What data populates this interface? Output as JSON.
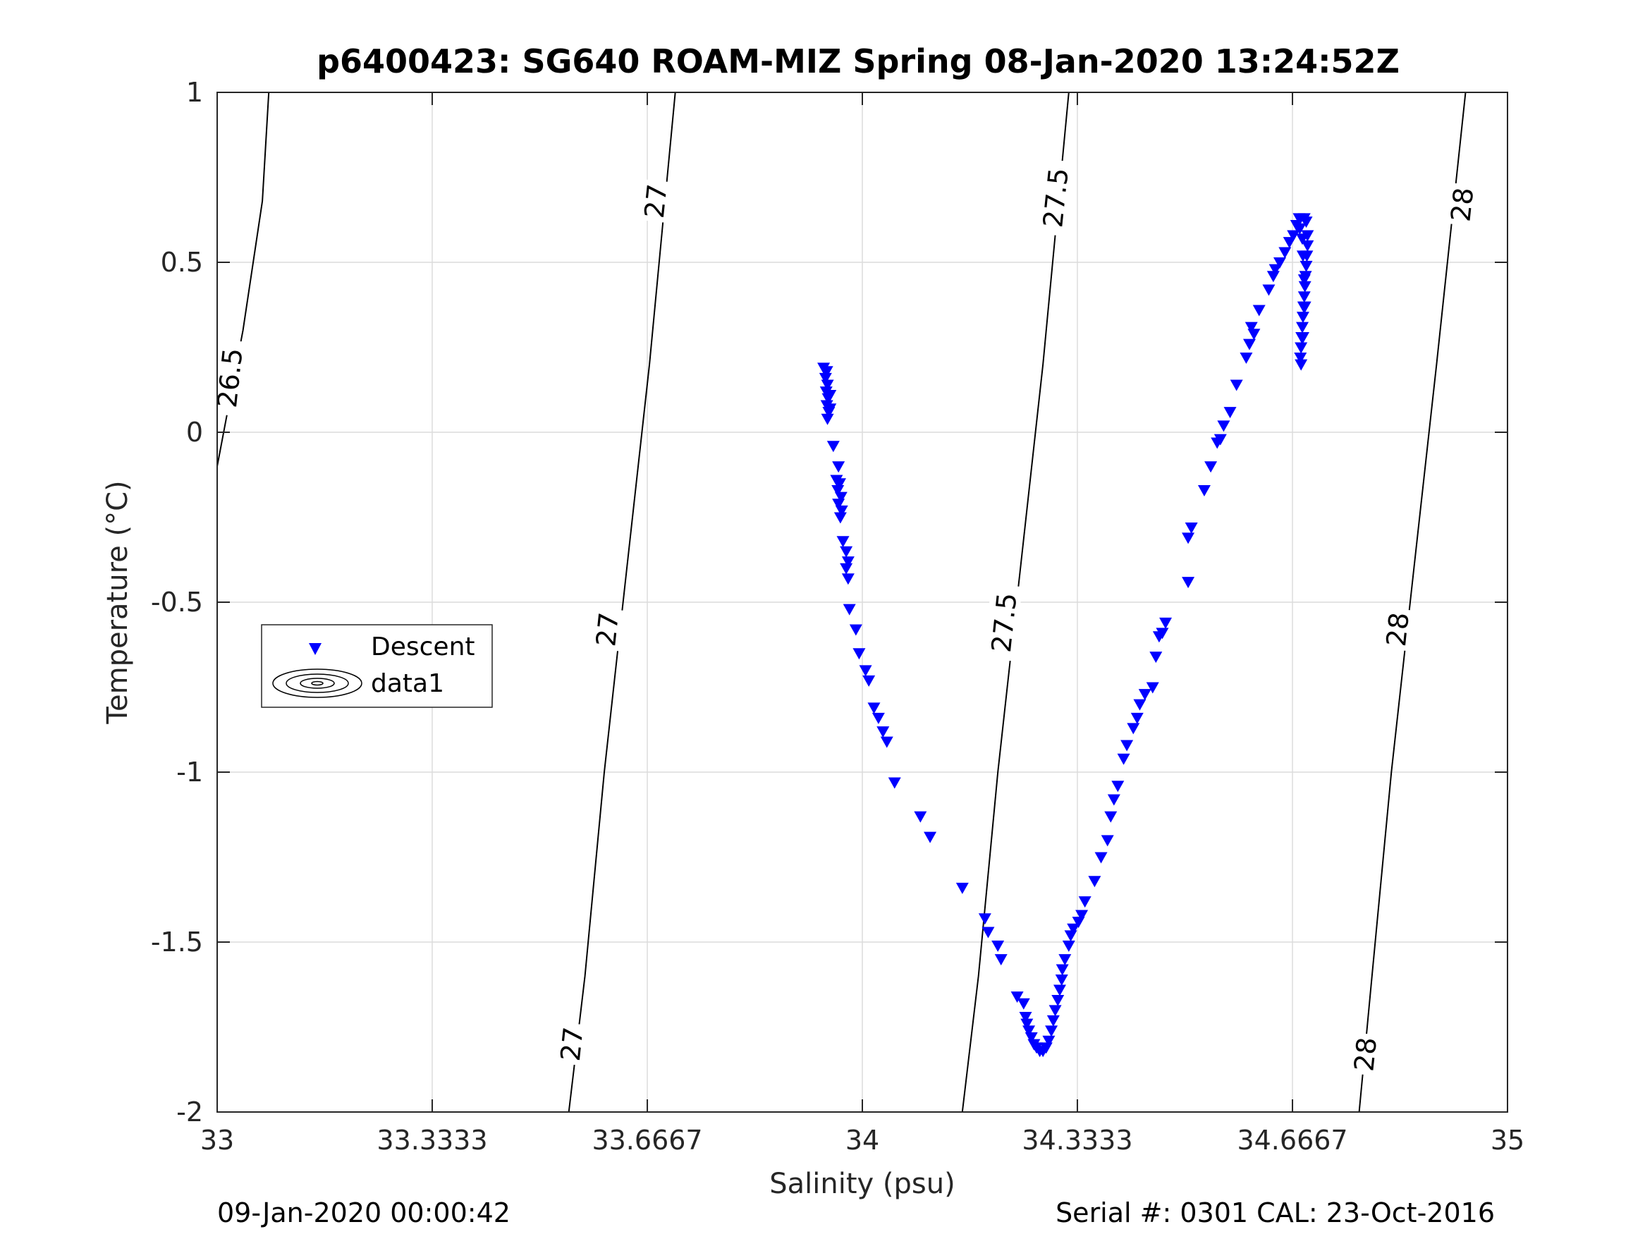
{
  "chart_data": {
    "type": "scatter",
    "title": "p6400423: SG640 ROAM-MIZ Spring 08-Jan-2020 13:24:52Z",
    "xlabel": "Salinity (psu)",
    "ylabel": "Temperature (°C)",
    "xlim": [
      33,
      35
    ],
    "ylim": [
      -2,
      1
    ],
    "x_ticks": [
      33,
      33.3333,
      33.6667,
      34,
      34.3333,
      34.6667,
      35
    ],
    "x_tick_labels": [
      "33",
      "33.3333",
      "33.6667",
      "34",
      "34.3333",
      "34.6667",
      "35"
    ],
    "y_ticks": [
      -2,
      -1.5,
      -1,
      -0.5,
      0,
      0.5,
      1
    ],
    "y_tick_labels": [
      "-2",
      "-1.5",
      "-1",
      "-0.5",
      "0",
      "0.5",
      "1"
    ],
    "grid": true,
    "legend": {
      "placement": "left-center",
      "entries": [
        {
          "label": "Descent",
          "marker": "triangle-down",
          "color": "#0000ff"
        },
        {
          "label": "data1",
          "marker": "contour",
          "color": "#000000"
        }
      ]
    },
    "contours": [
      {
        "level": "26.5",
        "points": [
          [
            32.99,
            -0.2
          ],
          [
            33.04,
            0.3
          ],
          [
            33.07,
            0.68
          ],
          [
            33.08,
            1.0
          ]
        ]
      },
      {
        "level": "27",
        "points": [
          [
            33.545,
            -2.0
          ],
          [
            33.57,
            -1.6
          ],
          [
            33.6,
            -1.0
          ],
          [
            33.635,
            -0.4
          ],
          [
            33.67,
            0.2
          ],
          [
            33.71,
            1.0
          ]
        ]
      },
      {
        "level": "27.5",
        "points": [
          [
            34.155,
            -2.0
          ],
          [
            34.18,
            -1.6
          ],
          [
            34.21,
            -1.0
          ],
          [
            34.245,
            -0.4
          ],
          [
            34.28,
            0.2
          ],
          [
            34.32,
            1.0
          ]
        ]
      },
      {
        "level": "28",
        "points": [
          [
            34.77,
            -2.0
          ],
          [
            34.79,
            -1.6
          ],
          [
            34.82,
            -1.0
          ],
          [
            34.855,
            -0.4
          ],
          [
            34.89,
            0.2
          ],
          [
            34.935,
            1.0
          ]
        ]
      }
    ],
    "contour_labels": [
      {
        "text": "26.5",
        "x": 33.02,
        "y": 0.16
      },
      {
        "text": "27",
        "x": 33.68,
        "y": 0.68
      },
      {
        "text": "27",
        "x": 33.605,
        "y": -0.58
      },
      {
        "text": "27",
        "x": 33.55,
        "y": -1.8
      },
      {
        "text": "27.5",
        "x": 34.3,
        "y": 0.69
      },
      {
        "text": "27.5",
        "x": 34.22,
        "y": -0.56
      },
      {
        "text": "28",
        "x": 34.93,
        "y": 0.67
      },
      {
        "text": "28",
        "x": 34.83,
        "y": -0.58
      },
      {
        "text": "28",
        "x": 34.78,
        "y": -1.83
      }
    ],
    "series": [
      {
        "name": "Descent",
        "color": "#0000ff",
        "marker": "triangle-down",
        "points": [
          [
            33.94,
            0.19
          ],
          [
            33.945,
            0.18
          ],
          [
            33.943,
            0.16
          ],
          [
            33.946,
            0.14
          ],
          [
            33.944,
            0.12
          ],
          [
            33.947,
            0.1
          ],
          [
            33.945,
            0.08
          ],
          [
            33.948,
            0.06
          ],
          [
            33.946,
            0.04
          ],
          [
            33.95,
            0.07
          ],
          [
            33.95,
            0.11
          ],
          [
            33.955,
            -0.04
          ],
          [
            33.963,
            -0.1
          ],
          [
            33.96,
            -0.14
          ],
          [
            33.965,
            -0.15
          ],
          [
            33.962,
            -0.17
          ],
          [
            33.967,
            -0.19
          ],
          [
            33.963,
            -0.21
          ],
          [
            33.968,
            -0.23
          ],
          [
            33.966,
            -0.25
          ],
          [
            33.97,
            -0.32
          ],
          [
            33.975,
            -0.35
          ],
          [
            33.978,
            -0.38
          ],
          [
            33.975,
            -0.4
          ],
          [
            33.978,
            -0.43
          ],
          [
            33.98,
            -0.52
          ],
          [
            33.99,
            -0.58
          ],
          [
            33.995,
            -0.65
          ],
          [
            34.005,
            -0.7
          ],
          [
            34.01,
            -0.73
          ],
          [
            34.018,
            -0.81
          ],
          [
            34.025,
            -0.84
          ],
          [
            34.032,
            -0.88
          ],
          [
            34.038,
            -0.91
          ],
          [
            34.05,
            -1.03
          ],
          [
            34.09,
            -1.13
          ],
          [
            34.105,
            -1.19
          ],
          [
            34.155,
            -1.34
          ],
          [
            34.19,
            -1.43
          ],
          [
            34.195,
            -1.47
          ],
          [
            34.21,
            -1.51
          ],
          [
            34.215,
            -1.55
          ],
          [
            34.24,
            -1.66
          ],
          [
            34.25,
            -1.68
          ],
          [
            34.253,
            -1.72
          ],
          [
            34.255,
            -1.74
          ],
          [
            34.258,
            -1.76
          ],
          [
            34.262,
            -1.78
          ],
          [
            34.266,
            -1.8
          ],
          [
            34.27,
            -1.81
          ],
          [
            34.275,
            -1.82
          ],
          [
            34.28,
            -1.82
          ],
          [
            34.285,
            -1.81
          ],
          [
            34.289,
            -1.79
          ],
          [
            34.293,
            -1.76
          ],
          [
            34.296,
            -1.73
          ],
          [
            34.299,
            -1.7
          ],
          [
            34.303,
            -1.67
          ],
          [
            34.306,
            -1.64
          ],
          [
            34.309,
            -1.61
          ],
          [
            34.31,
            -1.58
          ],
          [
            34.314,
            -1.55
          ],
          [
            34.32,
            -1.51
          ],
          [
            34.323,
            -1.48
          ],
          [
            34.327,
            -1.46
          ],
          [
            34.335,
            -1.44
          ],
          [
            34.34,
            -1.42
          ],
          [
            34.345,
            -1.38
          ],
          [
            34.36,
            -1.32
          ],
          [
            34.37,
            -1.25
          ],
          [
            34.38,
            -1.2
          ],
          [
            34.385,
            -1.13
          ],
          [
            34.39,
            -1.08
          ],
          [
            34.396,
            -1.04
          ],
          [
            34.405,
            -0.96
          ],
          [
            34.41,
            -0.92
          ],
          [
            34.42,
            -0.87
          ],
          [
            34.426,
            -0.84
          ],
          [
            34.43,
            -0.8
          ],
          [
            34.438,
            -0.77
          ],
          [
            34.45,
            -0.75
          ],
          [
            34.455,
            -0.66
          ],
          [
            34.46,
            -0.6
          ],
          [
            34.465,
            -0.59
          ],
          [
            34.47,
            -0.56
          ],
          [
            34.505,
            -0.44
          ],
          [
            34.505,
            -0.31
          ],
          [
            34.51,
            -0.28
          ],
          [
            34.53,
            -0.17
          ],
          [
            34.54,
            -0.1
          ],
          [
            34.55,
            -0.03
          ],
          [
            34.555,
            -0.02
          ],
          [
            34.56,
            0.02
          ],
          [
            34.57,
            0.06
          ],
          [
            34.58,
            0.14
          ],
          [
            34.595,
            0.22
          ],
          [
            34.6,
            0.26
          ],
          [
            34.607,
            0.29
          ],
          [
            34.603,
            0.31
          ],
          [
            34.615,
            0.36
          ],
          [
            34.63,
            0.42
          ],
          [
            34.637,
            0.46
          ],
          [
            34.64,
            0.48
          ],
          [
            34.647,
            0.5
          ],
          [
            34.655,
            0.53
          ],
          [
            34.662,
            0.56
          ],
          [
            34.668,
            0.58
          ],
          [
            34.673,
            0.61
          ],
          [
            34.677,
            0.63
          ],
          [
            34.685,
            0.63
          ],
          [
            34.688,
            0.62
          ],
          [
            34.69,
            0.58
          ],
          [
            34.69,
            0.55
          ],
          [
            34.689,
            0.52
          ],
          [
            34.688,
            0.49
          ],
          [
            34.687,
            0.46
          ],
          [
            34.686,
            0.43
          ],
          [
            34.685,
            0.4
          ],
          [
            34.684,
            0.37
          ],
          [
            34.683,
            0.34
          ],
          [
            34.682,
            0.31
          ],
          [
            34.681,
            0.28
          ],
          [
            34.68,
            0.25
          ],
          [
            34.679,
            0.22
          ],
          [
            34.68,
            0.2
          ],
          [
            34.683,
            0.52
          ],
          [
            34.685,
            0.45
          ],
          [
            34.678,
            0.6
          ],
          [
            34.682,
            0.57
          ],
          [
            34.686,
            0.37
          ],
          [
            34.683,
            0.28
          ]
        ]
      }
    ]
  },
  "footer": {
    "left": "09-Jan-2020 00:00:42",
    "right": "Serial #: 0301  CAL: 23-Oct-2016"
  },
  "colors": {
    "marker": "#0000ff",
    "grid": "#dcdcdc",
    "axis": "#262626"
  }
}
